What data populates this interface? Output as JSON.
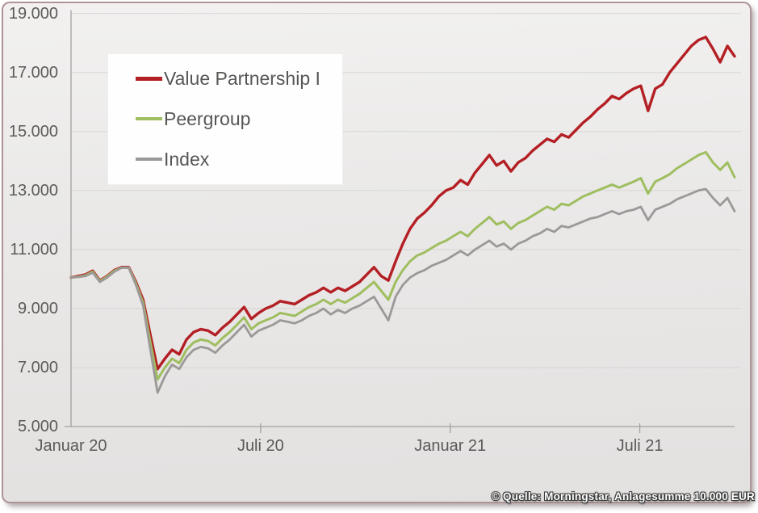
{
  "attribution": {
    "text": "© Quelle: Morningstar, Anlagesumme 10.000 EUR"
  },
  "chart_data": {
    "type": "line",
    "title": "",
    "xlabel": "",
    "ylabel": "",
    "x_range_months": [
      0,
      21
    ],
    "ylim": [
      5000,
      19000
    ],
    "grid": "horizontal",
    "legend_position": "top-left-overlay",
    "x_ticks": [
      {
        "label": "Januar 20",
        "month": 0
      },
      {
        "label": "Juli 20",
        "month": 6
      },
      {
        "label": "Januar 21",
        "month": 12
      },
      {
        "label": "Juli 21",
        "month": 18
      }
    ],
    "y_ticks": [
      {
        "label": "19.000",
        "value": 19000
      },
      {
        "label": "17.000",
        "value": 17000
      },
      {
        "label": "15.000",
        "value": 15000
      },
      {
        "label": "13.000",
        "value": 13000
      },
      {
        "label": "11.000",
        "value": 11000
      },
      {
        "label": "9.000",
        "value": 9000
      },
      {
        "label": "7.000",
        "value": 7000
      },
      {
        "label": "5.000",
        "value": 5000
      }
    ],
    "series": [
      {
        "name": "Value Partnership I",
        "color": "#b41f24",
        "line_width": 3.4,
        "values": [
          10050,
          10100,
          10150,
          10280,
          9950,
          10100,
          10300,
          10400,
          10400,
          9900,
          9300,
          8100,
          6950,
          7300,
          7600,
          7450,
          7950,
          8200,
          8300,
          8250,
          8100,
          8350,
          8550,
          8800,
          9050,
          8650,
          8850,
          9000,
          9100,
          9250,
          9200,
          9150,
          9300,
          9450,
          9550,
          9700,
          9550,
          9700,
          9600,
          9750,
          9900,
          10150,
          10400,
          10100,
          9950,
          10600,
          11200,
          11700,
          12050,
          12250,
          12500,
          12800,
          13000,
          13100,
          13350,
          13200,
          13600,
          13900,
          14200,
          13850,
          14000,
          13650,
          13950,
          14100,
          14350,
          14550,
          14750,
          14650,
          14900,
          14800,
          15050,
          15300,
          15500,
          15750,
          15950,
          16200,
          16100,
          16300,
          16450,
          16550,
          15700,
          16450,
          16600,
          17000,
          17300,
          17600,
          17900,
          18100,
          18200,
          17800,
          17350,
          17900,
          17550
        ]
      },
      {
        "name": "Peergroup",
        "color": "#9fbe5f",
        "line_width": 3.0,
        "values": [
          10050,
          10080,
          10120,
          10250,
          9930,
          10080,
          10280,
          10380,
          10380,
          9850,
          9200,
          7850,
          6600,
          7000,
          7300,
          7150,
          7600,
          7850,
          7950,
          7900,
          7750,
          8000,
          8200,
          8450,
          8700,
          8300,
          8500,
          8600,
          8700,
          8850,
          8800,
          8750,
          8900,
          9050,
          9150,
          9300,
          9150,
          9300,
          9200,
          9350,
          9500,
          9700,
          9900,
          9600,
          9300,
          9900,
          10300,
          10600,
          10800,
          10900,
          11050,
          11200,
          11300,
          11450,
          11600,
          11450,
          11700,
          11900,
          12100,
          11850,
          11950,
          11700,
          11900,
          12000,
          12150,
          12300,
          12450,
          12350,
          12550,
          12500,
          12650,
          12800,
          12900,
          13000,
          13100,
          13200,
          13100,
          13200,
          13300,
          13420,
          12900,
          13300,
          13420,
          13550,
          13750,
          13900,
          14050,
          14200,
          14300,
          13950,
          13700,
          13950,
          13450
        ]
      },
      {
        "name": "Index",
        "color": "#9b9998",
        "line_width": 2.8,
        "values": [
          10050,
          10070,
          10100,
          10220,
          9900,
          10050,
          10250,
          10380,
          10380,
          9800,
          9100,
          7600,
          6150,
          6700,
          7100,
          6950,
          7350,
          7600,
          7700,
          7650,
          7500,
          7750,
          7950,
          8200,
          8450,
          8050,
          8250,
          8350,
          8450,
          8600,
          8550,
          8500,
          8600,
          8750,
          8850,
          9000,
          8800,
          8950,
          8850,
          9000,
          9100,
          9250,
          9400,
          9000,
          8600,
          9400,
          9800,
          10050,
          10200,
          10300,
          10450,
          10550,
          10650,
          10800,
          10950,
          10800,
          11000,
          11150,
          11300,
          11100,
          11200,
          11000,
          11200,
          11300,
          11450,
          11550,
          11700,
          11600,
          11800,
          11750,
          11850,
          11950,
          12050,
          12100,
          12200,
          12300,
          12200,
          12300,
          12350,
          12450,
          12000,
          12350,
          12450,
          12550,
          12700,
          12800,
          12900,
          13000,
          13050,
          12750,
          12500,
          12750,
          12300
        ]
      }
    ]
  }
}
